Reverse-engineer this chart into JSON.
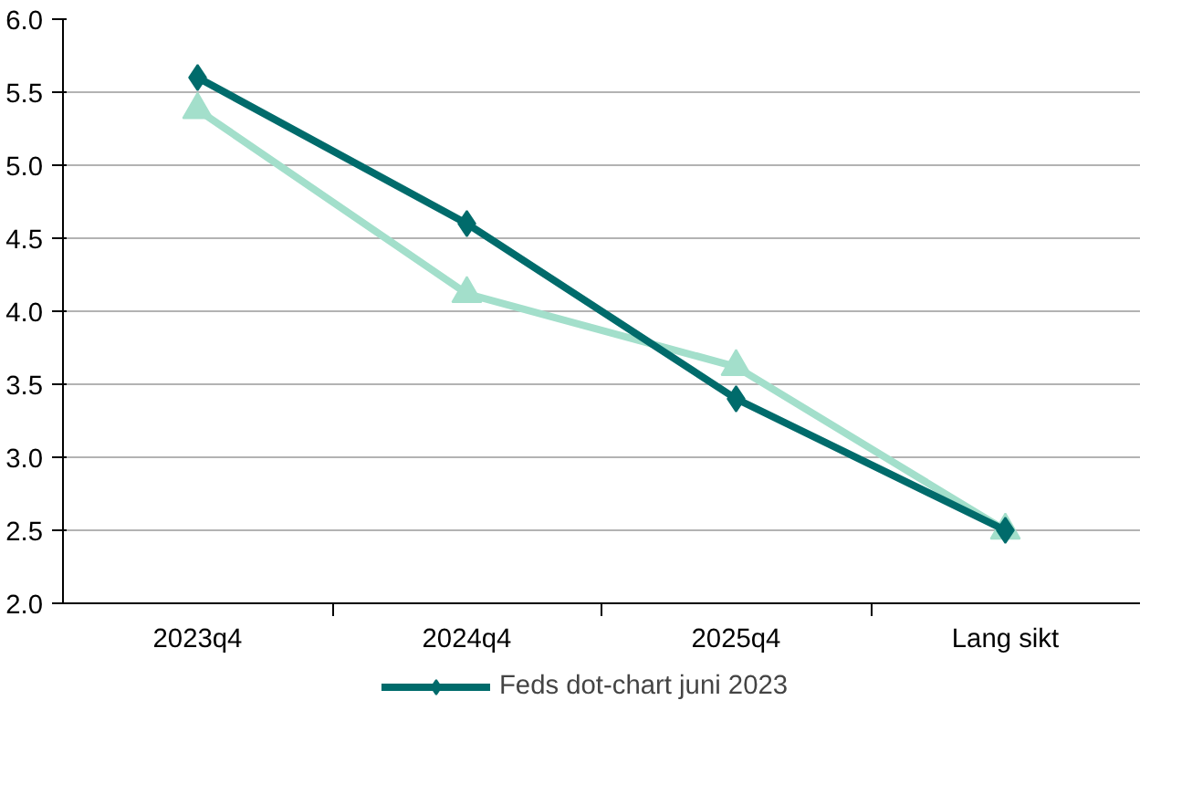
{
  "chart_data": {
    "type": "line",
    "categories": [
      "2023q4",
      "2024q4",
      "2025q4",
      "Lang sikt"
    ],
    "series": [
      {
        "color": "#a3dfcb",
        "values": [
          5.38,
          4.12,
          3.62,
          2.5
        ],
        "marker": "triangle"
      },
      {
        "name": "Feds dot-chart juni 2023",
        "color": "#006b6b",
        "values": [
          5.6,
          4.6,
          3.4,
          2.5
        ],
        "marker": "diamond"
      }
    ],
    "ylim": [
      2.0,
      6.0
    ],
    "yticks": [
      {
        "value": 2.0,
        "label": "2.0"
      },
      {
        "value": 2.5,
        "label": "2.5"
      },
      {
        "value": 3.0,
        "label": "3.0"
      },
      {
        "value": 3.5,
        "label": "3.5"
      },
      {
        "value": 4.0,
        "label": "4.0"
      },
      {
        "value": 4.5,
        "label": "4.5"
      },
      {
        "value": 5.0,
        "label": "5.0"
      },
      {
        "value": 5.5,
        "label": "5.5"
      },
      {
        "value": 6.0,
        "label": "6.0"
      }
    ],
    "grid": "y",
    "legend": "bottom",
    "line_style": "solid"
  }
}
